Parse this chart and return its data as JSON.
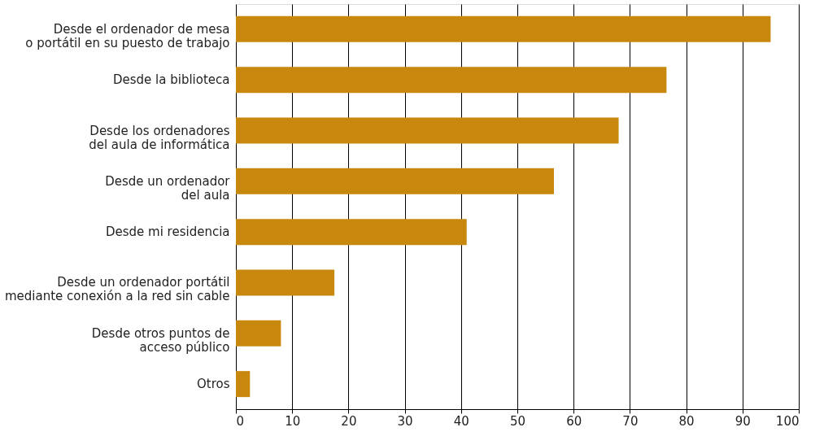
{
  "chart_data": {
    "type": "bar",
    "orientation": "horizontal",
    "categories": [
      "Desde el ordenador de mesa\no portátil en su puesto de trabajo",
      "Desde la biblioteca",
      "Desde los ordenadores\ndel aula de informática",
      "Desde un ordenador\ndel aula",
      "Desde mi residencia",
      "Desde un ordenador portátil\nmediante conexión a la red sin cable",
      "Desde otros puntos de\nacceso público",
      "Otros"
    ],
    "values": [
      95,
      76.5,
      68,
      56.5,
      41,
      17.5,
      8,
      2.5
    ],
    "color": "#c8880e",
    "xlim": [
      0,
      100
    ],
    "xticks": [
      0,
      10,
      20,
      30,
      40,
      50,
      60,
      70,
      80,
      90,
      100
    ],
    "grid": "x"
  }
}
